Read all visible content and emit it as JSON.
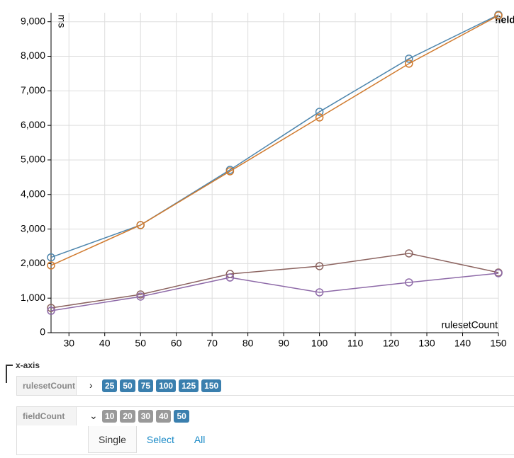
{
  "chart_data": {
    "type": "line",
    "x_label": "rulesetCount",
    "y_label": "ms",
    "legend_title": "fieldCount",
    "x": [
      25,
      50,
      75,
      100,
      125,
      150
    ],
    "series": [
      {
        "color": "#4e86ad",
        "values": [
          2180,
          3115,
          4713,
          6393,
          7930,
          9200
        ]
      },
      {
        "color": "#d07a2e",
        "values": [
          1947,
          3115,
          4672,
          6230,
          7787,
          9180
        ]
      },
      {
        "color": "#8c6460",
        "values": [
          717,
          1107,
          1701,
          1926,
          2295,
          1742
        ]
      },
      {
        "color": "#8e6aa8",
        "values": [
          635,
          1045,
          1598,
          1168,
          1455,
          1721
        ]
      }
    ],
    "xlim": [
      25,
      150
    ],
    "xticks": [
      30,
      40,
      50,
      60,
      70,
      80,
      90,
      100,
      110,
      120,
      130,
      140,
      150
    ],
    "ylim": [
      0,
      9260
    ],
    "yticks": [
      0,
      {
        "value": 1000,
        "label": "1,000"
      },
      {
        "value": 2000,
        "label": "2,000"
      },
      {
        "value": 3000,
        "label": "3,000"
      },
      {
        "value": 4000,
        "label": "4,000"
      },
      {
        "value": 5000,
        "label": "5,000"
      },
      {
        "value": 6000,
        "label": "6,000"
      },
      {
        "value": 7000,
        "label": "7,000"
      },
      {
        "value": 8000,
        "label": "8,000"
      },
      {
        "value": 9000,
        "label": "9,000"
      }
    ],
    "grid": true
  },
  "controls": {
    "title": "x-axis",
    "rows": [
      {
        "label": "rulesetCount",
        "options": [
          "25",
          "50",
          "75",
          "100",
          "125",
          "150"
        ],
        "active": [
          true,
          true,
          true,
          true,
          true,
          true
        ]
      },
      {
        "label": "fieldCount",
        "options": [
          "10",
          "20",
          "30",
          "40",
          "50"
        ],
        "active": [
          false,
          false,
          false,
          false,
          true
        ]
      }
    ],
    "buttons": [
      "Single",
      "Select",
      "All"
    ]
  }
}
